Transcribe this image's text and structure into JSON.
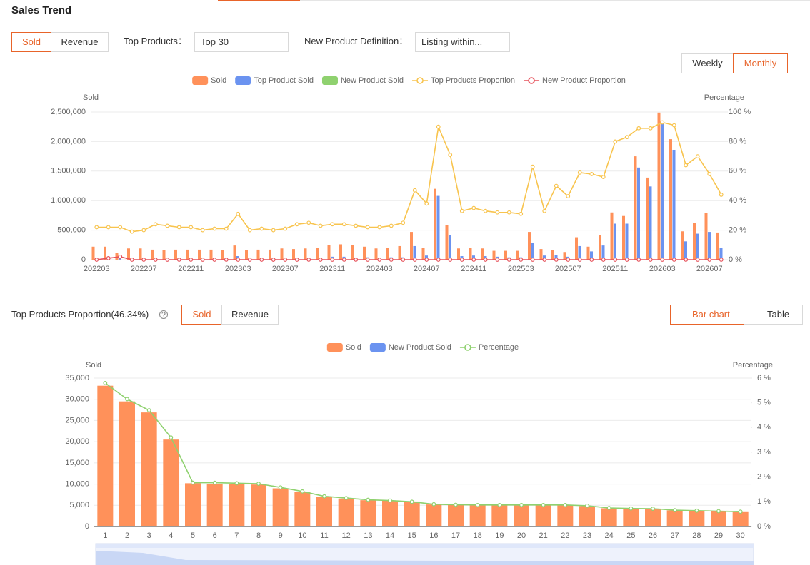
{
  "header": {
    "title": "Sales Trend"
  },
  "controls": {
    "metric_buttons": [
      "Sold",
      "Revenue"
    ],
    "top_products_label": "Top Products：",
    "top_products_value": "Top 30",
    "new_product_label": "New Product Definition：",
    "new_product_value": "Listing within...",
    "period_buttons": [
      "Weekly",
      "Monthly"
    ]
  },
  "section2": {
    "title": "Top Products Proportion(46.34%)",
    "metric_buttons": [
      "Sold",
      "Revenue"
    ],
    "view_buttons": [
      "Bar chart",
      "Table"
    ]
  },
  "chart_data": [
    {
      "type": "bar",
      "y_label": "Sold",
      "y2_label": "Percentage",
      "grid": true,
      "categories": [
        "202203",
        null,
        null,
        null,
        "202207",
        null,
        null,
        null,
        "202211",
        null,
        null,
        null,
        "202303",
        null,
        null,
        null,
        "202307",
        null,
        null,
        null,
        "202311",
        null,
        null,
        null,
        "202403",
        null,
        null,
        null,
        "202407",
        null,
        null,
        null,
        "202411",
        null,
        null,
        null,
        "202503",
        null,
        null,
        null,
        "202507",
        null,
        null,
        null,
        "202511",
        null,
        null,
        null,
        "202603",
        null,
        null,
        null,
        "202607",
        null
      ],
      "ylim": [
        0,
        2500000
      ],
      "yticks": [
        0,
        {
          "value": 500000,
          "label": "500,000"
        },
        {
          "value": 1000000,
          "label": "1,000,000"
        },
        {
          "value": 1500000,
          "label": "1,500,000"
        },
        {
          "value": 2000000,
          "label": "2,000,000"
        },
        {
          "value": 2500000,
          "label": "2,500,000"
        }
      ],
      "y2lim": [
        0,
        100
      ],
      "y2ticks": [
        {
          "value": 0,
          "label": "0 %"
        },
        {
          "value": 20,
          "label": "20 %"
        },
        {
          "value": 40,
          "label": "40 %"
        },
        {
          "value": 60,
          "label": "60 %"
        },
        {
          "value": 80,
          "label": "80 %"
        },
        {
          "value": 100,
          "label": "100 %"
        }
      ],
      "series": [
        {
          "name": "Sold",
          "type": "bar",
          "color": "#ff915a",
          "values": [
            220000,
            220000,
            120000,
            190000,
            190000,
            170000,
            160000,
            170000,
            170000,
            170000,
            170000,
            160000,
            240000,
            160000,
            170000,
            170000,
            190000,
            180000,
            190000,
            200000,
            250000,
            260000,
            250000,
            220000,
            190000,
            200000,
            230000,
            470000,
            200000,
            1200000,
            590000,
            190000,
            200000,
            190000,
            150000,
            150000,
            150000,
            470000,
            180000,
            160000,
            130000,
            380000,
            220000,
            420000,
            800000,
            740000,
            1750000,
            1390000,
            2490000,
            2040000,
            480000,
            620000,
            790000,
            460000
          ]
        },
        {
          "name": "Top Product Sold",
          "type": "bar",
          "color": "#6b93f0",
          "values": [
            20000,
            20000,
            20000,
            20000,
            20000,
            20000,
            20000,
            20000,
            20000,
            20000,
            20000,
            20000,
            60000,
            20000,
            20000,
            20000,
            20000,
            30000,
            30000,
            30000,
            50000,
            50000,
            30000,
            40000,
            30000,
            40000,
            40000,
            230000,
            70000,
            1080000,
            420000,
            60000,
            70000,
            60000,
            50000,
            40000,
            40000,
            290000,
            70000,
            80000,
            50000,
            230000,
            140000,
            240000,
            610000,
            610000,
            1560000,
            1240000,
            2300000,
            1860000,
            310000,
            440000,
            470000,
            200000
          ]
        },
        {
          "name": "New Product Sold",
          "type": "bar",
          "color": "#8fd16f",
          "values": [
            0,
            0,
            0,
            0,
            0,
            0,
            0,
            0,
            0,
            0,
            0,
            0,
            0,
            0,
            0,
            0,
            0,
            0,
            0,
            0,
            0,
            0,
            0,
            0,
            0,
            0,
            0,
            0,
            0,
            0,
            0,
            0,
            0,
            0,
            0,
            0,
            0,
            0,
            0,
            0,
            0,
            0,
            0,
            0,
            0,
            0,
            0,
            0,
            0,
            0,
            0,
            0,
            0,
            0
          ]
        },
        {
          "name": "Top Products Proportion",
          "type": "line",
          "axis": "y2",
          "color": "#f8c44e",
          "values": [
            22,
            22,
            22,
            19,
            20,
            24,
            23,
            22,
            22,
            20,
            21,
            21,
            31,
            20,
            21,
            20,
            21,
            24,
            25,
            23,
            24,
            24,
            23,
            22,
            22,
            23,
            25,
            47,
            38,
            90,
            71,
            33,
            35,
            33,
            32,
            32,
            31,
            63,
            33,
            50,
            43,
            59,
            58,
            56,
            80,
            83,
            89,
            89,
            93,
            91,
            64,
            70,
            58,
            44
          ]
        },
        {
          "name": "New Product Proportion",
          "type": "line",
          "axis": "y2",
          "color": "#e6505a",
          "values": [
            0,
            1,
            2,
            0,
            0,
            0,
            0,
            0,
            0,
            0,
            0,
            0,
            0,
            0,
            0,
            0,
            0,
            0,
            0,
            0,
            0,
            0,
            0,
            0,
            0,
            0,
            0,
            0,
            0,
            0,
            0,
            0,
            0,
            0,
            0,
            0,
            0,
            0,
            0,
            0,
            0,
            0,
            0,
            0,
            0,
            0,
            0,
            0,
            0,
            0,
            0,
            0,
            0,
            0
          ]
        }
      ]
    },
    {
      "type": "bar",
      "y_label": "Sold",
      "y2_label": "Percentage",
      "grid": true,
      "categories": [
        "1",
        "2",
        "3",
        "4",
        "5",
        "6",
        "7",
        "8",
        "9",
        "10",
        "11",
        "12",
        "13",
        "14",
        "15",
        "16",
        "17",
        "18",
        "19",
        "20",
        "21",
        "22",
        "23",
        "24",
        "25",
        "26",
        "27",
        "28",
        "29",
        "30"
      ],
      "ylim": [
        0,
        35000
      ],
      "yticks": [
        0,
        {
          "value": 5000,
          "label": "5,000"
        },
        {
          "value": 10000,
          "label": "10,000"
        },
        {
          "value": 15000,
          "label": "15,000"
        },
        {
          "value": 20000,
          "label": "20,000"
        },
        {
          "value": 25000,
          "label": "25,000"
        },
        {
          "value": 30000,
          "label": "30,000"
        },
        {
          "value": 35000,
          "label": "35,000"
        }
      ],
      "y2lim": [
        0,
        6
      ],
      "y2ticks": [
        {
          "value": 0,
          "label": "0 %"
        },
        {
          "value": 1,
          "label": "1 %"
        },
        {
          "value": 2,
          "label": "2 %"
        },
        {
          "value": 3,
          "label": "3 %"
        },
        {
          "value": 4,
          "label": "4 %"
        },
        {
          "value": 5,
          "label": "5 %"
        },
        {
          "value": 6,
          "label": "6 %"
        }
      ],
      "series": [
        {
          "name": "Sold",
          "type": "bar",
          "color": "#ff915a",
          "values": [
            33200,
            29500,
            26900,
            20500,
            10200,
            10100,
            10000,
            9900,
            9000,
            8100,
            7000,
            6600,
            6200,
            6100,
            5900,
            5200,
            5100,
            5000,
            5000,
            5000,
            5000,
            5000,
            4800,
            4300,
            4200,
            4100,
            3800,
            3700,
            3600,
            3400
          ]
        },
        {
          "name": "New Product Sold",
          "type": "bar",
          "color": "#6b93f0",
          "values": [
            0,
            0,
            0,
            0,
            0,
            0,
            0,
            0,
            0,
            0,
            0,
            0,
            0,
            0,
            0,
            0,
            0,
            0,
            0,
            0,
            0,
            0,
            0,
            0,
            0,
            0,
            0,
            0,
            0,
            0
          ]
        },
        {
          "name": "Percentage",
          "type": "line",
          "axis": "y2",
          "color": "#8fd16f",
          "values": [
            5.8,
            5.15,
            4.7,
            3.6,
            1.77,
            1.77,
            1.75,
            1.73,
            1.58,
            1.42,
            1.22,
            1.15,
            1.08,
            1.05,
            1.0,
            0.9,
            0.88,
            0.87,
            0.87,
            0.87,
            0.87,
            0.87,
            0.84,
            0.75,
            0.73,
            0.72,
            0.66,
            0.64,
            0.62,
            0.6
          ]
        }
      ]
    }
  ]
}
